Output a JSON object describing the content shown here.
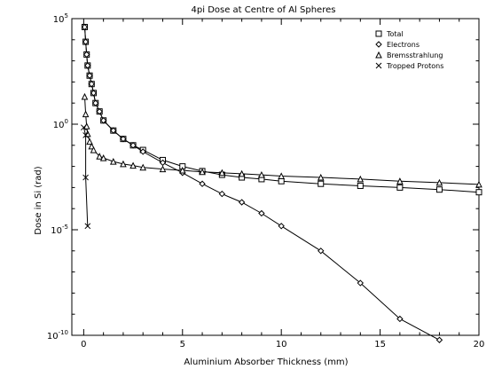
{
  "chart_data": {
    "type": "line",
    "title": "4pi Dose at Centre of Al Spheres",
    "xlabel": "Aluminium Absorber Thickness (mm)",
    "ylabel": "Dose in Si (rad)",
    "xlim": [
      -0.6,
      20
    ],
    "ylim": [
      1e-10,
      100000
    ],
    "y_scale": "log",
    "grid": false,
    "legend_position": "top-right",
    "x_ticks": [
      0,
      5,
      10,
      15,
      20
    ],
    "x_tick_labels": [
      "0",
      "5",
      "10",
      "15",
      "20"
    ],
    "y_ticks": [
      {
        "value": 1e-10,
        "mantissa": "10",
        "exponent": "-10"
      },
      {
        "value": 1e-05,
        "mantissa": "10",
        "exponent": "-5"
      },
      {
        "value": 1,
        "mantissa": "10",
        "exponent": "0"
      },
      {
        "value": 100000,
        "mantissa": "10",
        "exponent": "5"
      }
    ],
    "series": [
      {
        "name": "Total",
        "marker": "square",
        "x": [
          0.05,
          0.1,
          0.15,
          0.2,
          0.3,
          0.4,
          0.5,
          0.6,
          0.8,
          1,
          1.5,
          2,
          2.5,
          3,
          4,
          5,
          6,
          7,
          8,
          9,
          10,
          12,
          14,
          16,
          18,
          20
        ],
        "y": [
          40000,
          8000,
          2000,
          600,
          200,
          80,
          30,
          10,
          4,
          1.5,
          0.5,
          0.2,
          0.1,
          0.06,
          0.02,
          0.01,
          0.006,
          0.004,
          0.003,
          0.0025,
          0.002,
          0.0015,
          0.0012,
          0.001,
          0.0008,
          0.0006
        ]
      },
      {
        "name": "Electrons",
        "marker": "diamond",
        "x": [
          0.05,
          0.1,
          0.15,
          0.2,
          0.3,
          0.4,
          0.5,
          0.6,
          0.8,
          1,
          1.5,
          2,
          2.5,
          3,
          4,
          5,
          6,
          7,
          8,
          9,
          10,
          12,
          14,
          16,
          18
        ],
        "y": [
          40000,
          8000,
          2000,
          600,
          200,
          80,
          30,
          10,
          4,
          1.5,
          0.5,
          0.2,
          0.1,
          0.05,
          0.015,
          0.005,
          0.0015,
          0.0005,
          0.0002,
          6e-05,
          1.5e-05,
          1e-06,
          3e-08,
          6e-10,
          6e-11
        ]
      },
      {
        "name": "Bremsstrahlung",
        "marker": "triangle",
        "x": [
          0.05,
          0.1,
          0.15,
          0.2,
          0.3,
          0.4,
          0.5,
          0.8,
          1,
          1.5,
          2,
          2.5,
          3,
          4,
          5,
          6,
          7,
          8,
          9,
          10,
          12,
          14,
          16,
          18,
          20
        ],
        "y": [
          20,
          3,
          0.8,
          0.35,
          0.15,
          0.09,
          0.06,
          0.03,
          0.025,
          0.017,
          0.013,
          0.011,
          0.009,
          0.0075,
          0.0065,
          0.0055,
          0.005,
          0.0045,
          0.004,
          0.0035,
          0.003,
          0.0025,
          0.002,
          0.0017,
          0.0014
        ]
      },
      {
        "name": "Tropped Protons",
        "marker": "cross",
        "x": [
          0,
          0.1,
          0.1,
          0.2
        ],
        "y": [
          0.7,
          0.3,
          0.003,
          1.5e-05
        ]
      }
    ]
  }
}
